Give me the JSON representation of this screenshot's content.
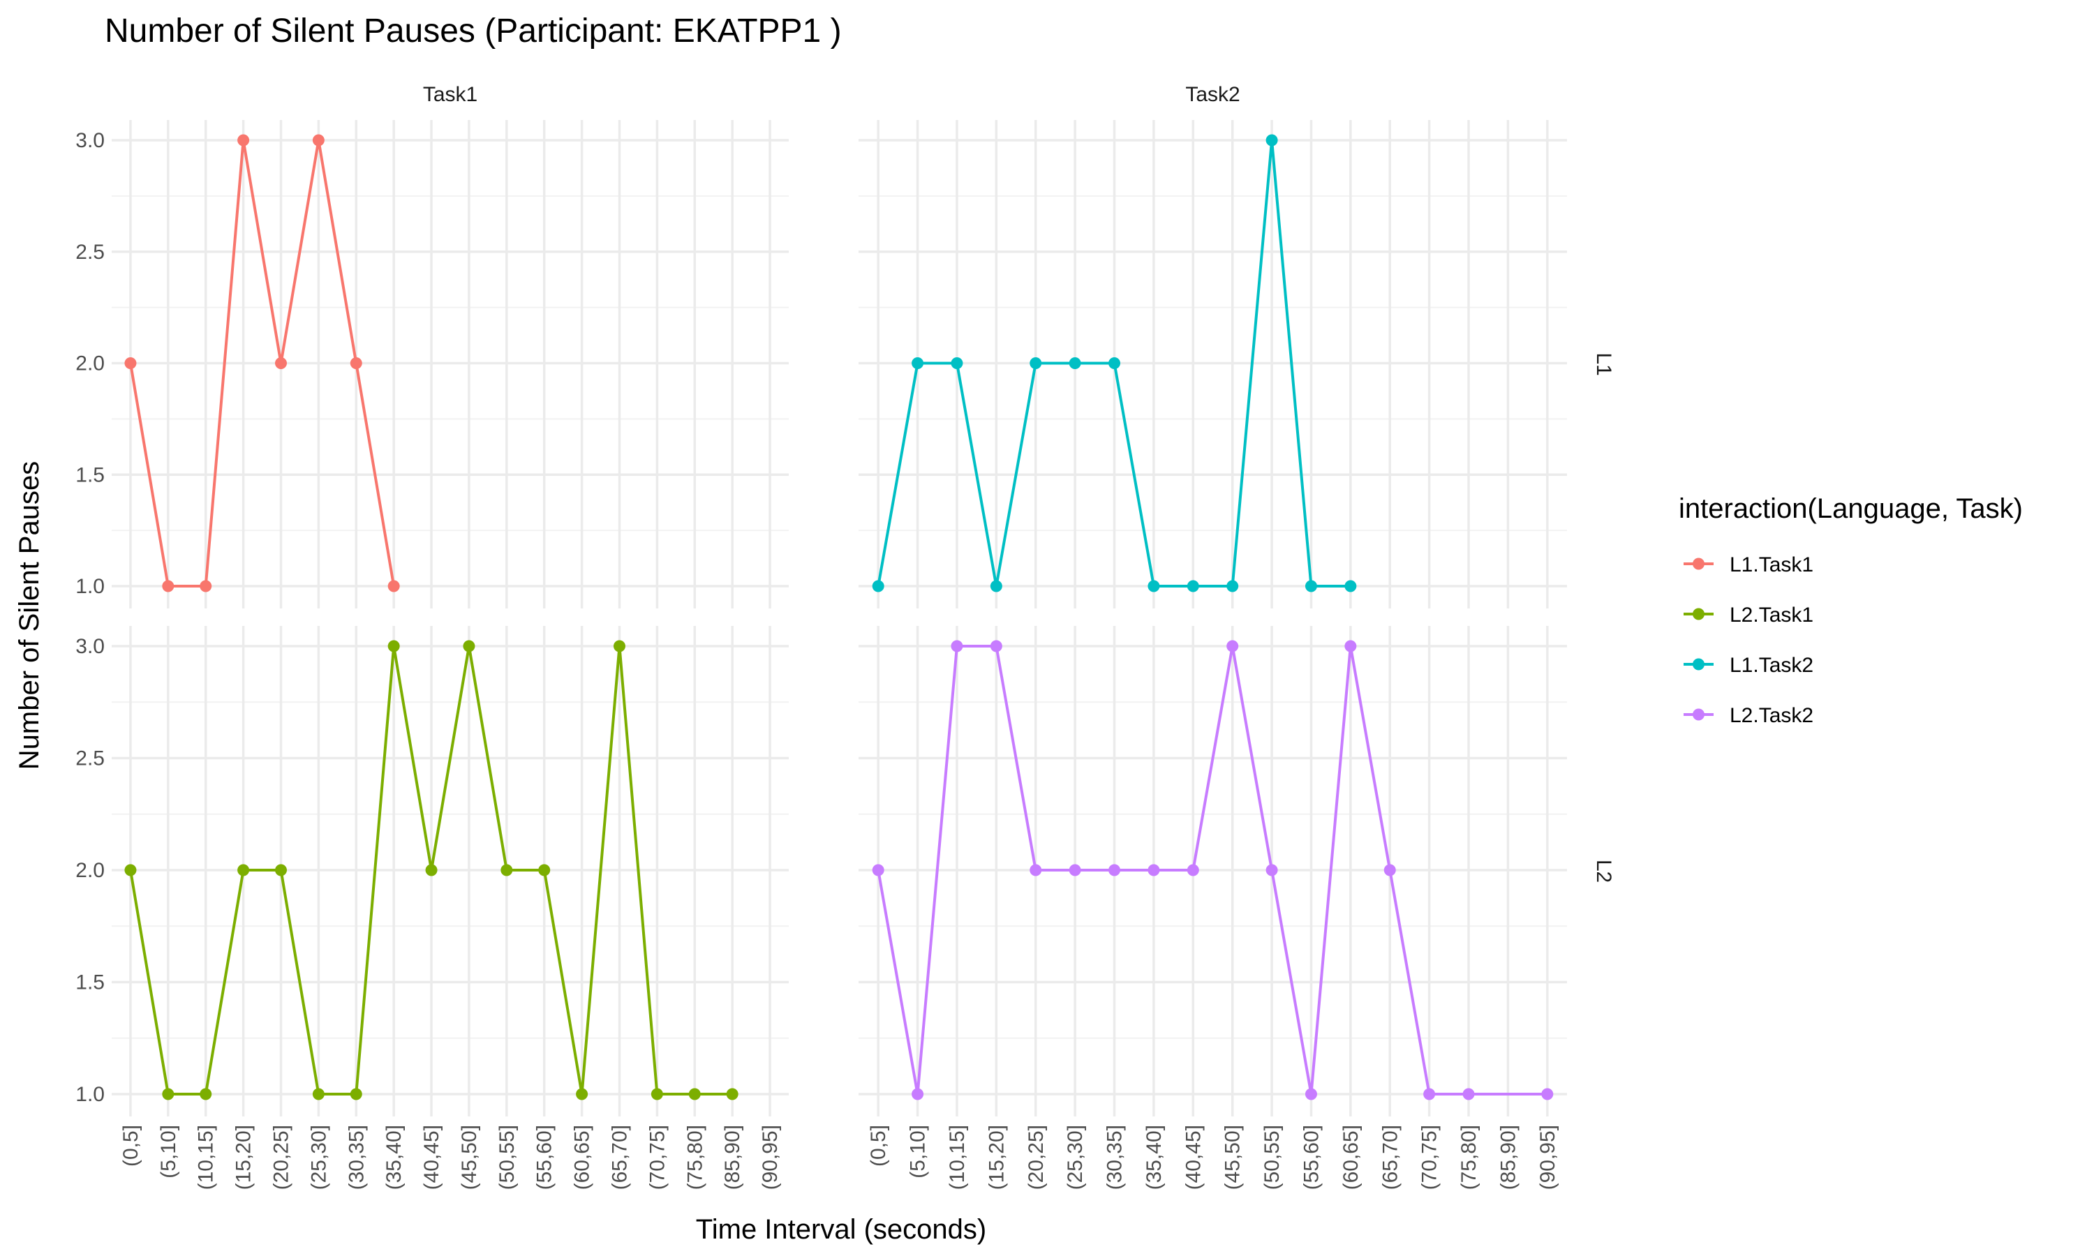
{
  "chart_data": {
    "type": "line",
    "title": "Number of Silent Pauses (Participant: EKATPP1 )",
    "xlabel": "Time Interval (seconds)",
    "ylabel": "Number of Silent Pauses",
    "categories": [
      "(0,5]",
      "(5,10]",
      "(10,15]",
      "(15,20]",
      "(20,25]",
      "(25,30]",
      "(30,35]",
      "(35,40]",
      "(40,45]",
      "(45,50]",
      "(50,55]",
      "(55,60]",
      "(60,65]",
      "(65,70]",
      "(70,75]",
      "(75,80]",
      "(85,90]",
      "(90,95]"
    ],
    "ylim": [
      0.9,
      3.1
    ],
    "yticks": [
      "1.0",
      "1.5",
      "2.0",
      "2.5",
      "3.0"
    ],
    "grid": true,
    "facet_columns": [
      "Task1",
      "Task2"
    ],
    "facet_rows": [
      "L1",
      "L2"
    ],
    "legend": {
      "title": "interaction(Language, Task)",
      "position": "right",
      "items": [
        "L1.Task1",
        "L2.Task1",
        "L1.Task2",
        "L2.Task2"
      ]
    },
    "series": [
      {
        "name": "L1.Task1",
        "language": "L1",
        "task": "Task1",
        "color": "#F8766D",
        "x": [
          "(0,5]",
          "(5,10]",
          "(10,15]",
          "(15,20]",
          "(20,25]",
          "(25,30]",
          "(30,35]",
          "(35,40]"
        ],
        "values": [
          2,
          1,
          1,
          3,
          2,
          3,
          2,
          1
        ]
      },
      {
        "name": "L1.Task2",
        "language": "L1",
        "task": "Task2",
        "color": "#00BFC4",
        "x": [
          "(0,5]",
          "(5,10]",
          "(10,15]",
          "(15,20]",
          "(20,25]",
          "(25,30]",
          "(30,35]",
          "(35,40]",
          "(40,45]",
          "(45,50]",
          "(50,55]",
          "(55,60]",
          "(60,65]"
        ],
        "values": [
          1,
          2,
          2,
          1,
          2,
          2,
          2,
          1,
          1,
          1,
          3,
          1,
          1
        ]
      },
      {
        "name": "L2.Task1",
        "language": "L2",
        "task": "Task1",
        "color": "#7CAE00",
        "x": [
          "(0,5]",
          "(5,10]",
          "(10,15]",
          "(15,20]",
          "(20,25]",
          "(25,30]",
          "(30,35]",
          "(35,40]",
          "(40,45]",
          "(45,50]",
          "(50,55]",
          "(55,60]",
          "(60,65]",
          "(65,70]",
          "(70,75]",
          "(75,80]",
          "(85,90]"
        ],
        "values": [
          2,
          1,
          1,
          2,
          2,
          1,
          1,
          3,
          2,
          3,
          2,
          2,
          1,
          3,
          1,
          1,
          1
        ]
      },
      {
        "name": "L2.Task2",
        "language": "L2",
        "task": "Task2",
        "color": "#C77CFF",
        "x": [
          "(0,5]",
          "(5,10]",
          "(10,15]",
          "(15,20]",
          "(20,25]",
          "(25,30]",
          "(30,35]",
          "(35,40]",
          "(40,45]",
          "(45,50]",
          "(50,55]",
          "(55,60]",
          "(60,65]",
          "(65,70]",
          "(70,75]",
          "(75,80]",
          "(90,95]"
        ],
        "values": [
          2,
          1,
          3,
          3,
          2,
          2,
          2,
          2,
          2,
          3,
          2,
          1,
          3,
          2,
          1,
          1,
          1
        ]
      }
    ]
  }
}
